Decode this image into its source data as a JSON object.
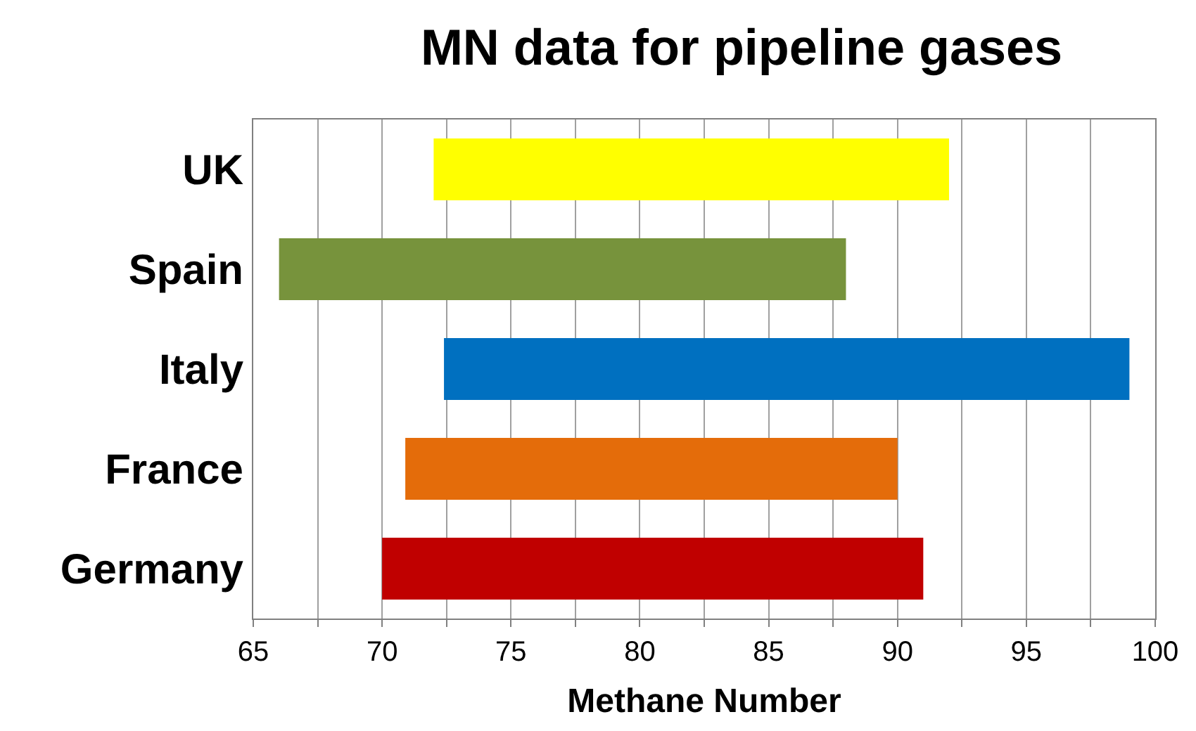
{
  "chart_data": {
    "type": "bar",
    "title": "MN data for pipeline gases",
    "xlabel": "Methane Number",
    "orientation": "horizontal",
    "categories": [
      "UK",
      "Spain",
      "Italy",
      "France",
      "Germany"
    ],
    "base": [
      72,
      66,
      72.4,
      70.9,
      70
    ],
    "values": [
      20,
      22,
      26.6,
      19.1,
      21
    ],
    "colors": [
      "#ffff00",
      "#77933c",
      "#0070c0",
      "#e46c0a",
      "#c00000"
    ],
    "xlim": [
      65,
      100
    ],
    "xticks": [
      65,
      {
        "value": 67.5,
        "label": null
      },
      70,
      {
        "value": 72.5,
        "label": null
      },
      75,
      {
        "value": 77.5,
        "label": null
      },
      80,
      {
        "value": 82.5,
        "label": null
      },
      85,
      {
        "value": 87.5,
        "label": null
      },
      90,
      {
        "value": 92.5,
        "label": null
      },
      95,
      {
        "value": 97.5,
        "label": null
      },
      100
    ],
    "grid": "x",
    "legend": false
  }
}
